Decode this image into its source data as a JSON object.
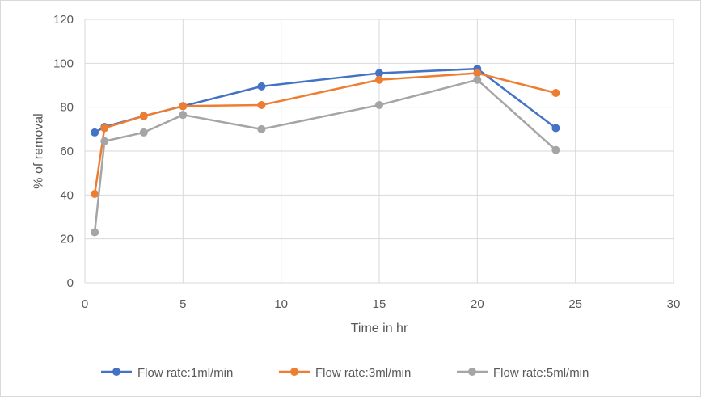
{
  "chart_data": {
    "type": "line",
    "title": "",
    "xlabel": "Time in hr",
    "ylabel": "% of removal",
    "xlim": [
      0,
      30
    ],
    "ylim": [
      0,
      120
    ],
    "xticks": [
      "0",
      "5",
      "10",
      "15",
      "20",
      "25",
      "30"
    ],
    "yticks": [
      "0",
      "20",
      "40",
      "60",
      "80",
      "100",
      "120"
    ],
    "grid": true,
    "legend_position": "bottom",
    "series": [
      {
        "name": "Flow rate:1ml/min",
        "color": "#4472c4",
        "x": [
          0.5,
          1,
          3,
          5,
          9,
          15,
          20,
          24
        ],
        "y": [
          68.5,
          71,
          76,
          80.5,
          89.5,
          95.5,
          97.5,
          70.5
        ]
      },
      {
        "name": "Flow rate:3ml/min",
        "color": "#ed7d31",
        "x": [
          0.5,
          1,
          3,
          5,
          9,
          15,
          20,
          24
        ],
        "y": [
          40.5,
          70.5,
          76,
          80.5,
          81,
          92.5,
          95.5,
          86.5
        ]
      },
      {
        "name": "Flow rate:5ml/min",
        "color": "#a5a5a5",
        "x": [
          0.5,
          1,
          3,
          5,
          9,
          15,
          20,
          24
        ],
        "y": [
          23,
          64.5,
          68.5,
          76.5,
          70,
          81,
          92.5,
          60.5
        ]
      }
    ]
  }
}
